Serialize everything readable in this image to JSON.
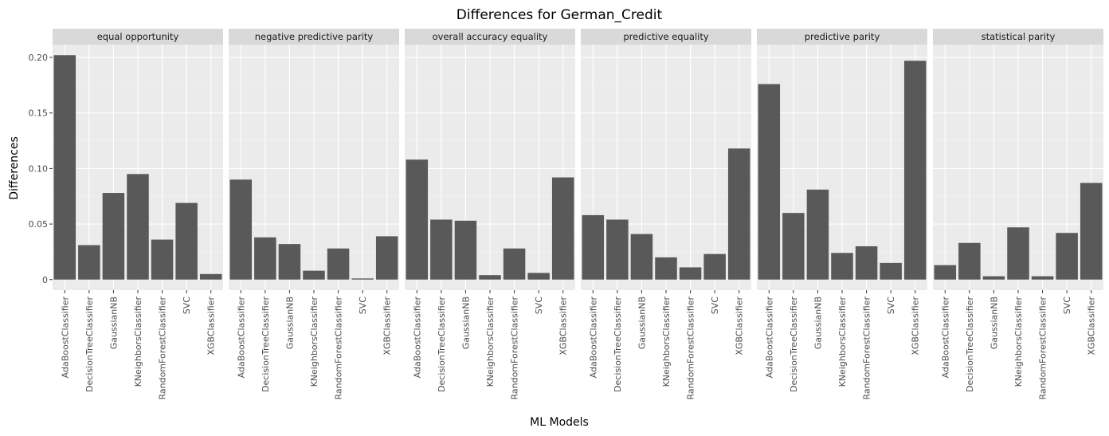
{
  "chart_data": {
    "type": "bar",
    "title": "Differences for German_Credit",
    "xlabel": "ML Models",
    "ylabel": "Differences",
    "ylim": [
      -0.0095,
      0.2115
    ],
    "yticks": [
      0,
      0.05,
      0.1,
      0.15,
      0.2
    ],
    "ytick_labels": [
      "0",
      "0.05",
      "0.10",
      "0.15",
      "0.20"
    ],
    "categories": [
      "AdaBoostClassifier",
      "DecisionTreeClassifier",
      "GaussianNB",
      "KNeighborsClassifier",
      "RandomForestClassifier",
      "SVC",
      "XGBClassifier"
    ],
    "grid": true,
    "legend": "none",
    "facets": [
      {
        "name": "equal opportunity",
        "values": [
          0.202,
          0.031,
          0.078,
          0.095,
          0.036,
          0.069,
          0.005
        ]
      },
      {
        "name": "negative predictive parity",
        "values": [
          0.09,
          0.038,
          0.032,
          0.008,
          0.028,
          0.001,
          0.039
        ]
      },
      {
        "name": "overall accuracy equality",
        "values": [
          0.108,
          0.054,
          0.053,
          0.004,
          0.028,
          0.006,
          0.092
        ]
      },
      {
        "name": "predictive equality",
        "values": [
          0.058,
          0.054,
          0.041,
          0.02,
          0.011,
          0.023,
          0.118
        ]
      },
      {
        "name": "predictive parity",
        "values": [
          0.176,
          0.06,
          0.081,
          0.024,
          0.03,
          0.015,
          0.197
        ]
      },
      {
        "name": "statistical parity",
        "values": [
          0.013,
          0.033,
          0.003,
          0.047,
          0.003,
          0.042,
          0.087
        ]
      }
    ],
    "colors": {
      "bar": "#595959",
      "panel": "#ebebeb",
      "strip": "#d9d9d9",
      "grid_major": "#ffffff",
      "grid_minor": "#f5f5f5"
    }
  }
}
